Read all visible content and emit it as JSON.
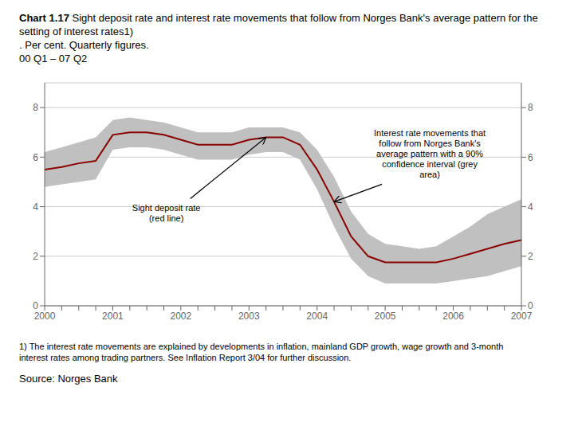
{
  "chart_data": {
    "type": "line",
    "title": "Chart 1.17",
    "subtitle": "Sight deposit rate and interest rate movements that follow from Norges Bank's average pattern for the setting of interest rates1)\n. Per cent. Quarterly figures.\n00 Q1 – 07 Q2",
    "footnote": "1) The interest rate movements are explained by developments in inflation, mainland GDP growth, wage growth and 3-month interest rates among trading partners. See Inflation Report 3/04 for further discussion.",
    "source": "Source: Norges Bank",
    "annotations": [
      "Sight deposit rate\n(red line)",
      "Interest rate movements that\nfollow from Norges Bank's\naverage pattern with a 90%\nconfidence interval (grey\narea)"
    ],
    "categories": [
      "2000",
      null,
      null,
      null,
      "2001",
      null,
      null,
      null,
      "2002",
      null,
      null,
      null,
      "2003",
      null,
      null,
      null,
      "2004",
      null,
      null,
      null,
      "2005",
      null,
      null,
      null,
      "2006",
      null,
      null,
      null,
      "2007"
    ],
    "series": [
      {
        "type": "area",
        "color": "#C0C0C0",
        "lower": [
          4.8,
          4.9,
          5.0,
          5.1,
          6.3,
          6.4,
          6.4,
          6.3,
          6.1,
          5.9,
          5.9,
          5.9,
          6.1,
          6.2,
          6.2,
          5.9,
          4.7,
          3.2,
          1.9,
          1.2,
          0.9,
          0.9,
          0.9,
          0.9,
          1.0,
          1.1,
          1.2,
          1.4,
          1.6
        ],
        "upper": [
          6.2,
          6.4,
          6.6,
          6.8,
          7.5,
          7.6,
          7.5,
          7.4,
          7.2,
          7.0,
          7.0,
          7.0,
          7.2,
          7.2,
          7.2,
          7.0,
          6.3,
          5.2,
          3.8,
          2.9,
          2.5,
          2.4,
          2.3,
          2.4,
          2.8,
          3.2,
          3.7,
          4.0,
          4.3
        ]
      },
      {
        "type": "line",
        "color": "#8B0000",
        "values": [
          5.5,
          5.6,
          5.75,
          5.85,
          6.9,
          7.0,
          7.0,
          6.9,
          6.7,
          6.5,
          6.5,
          6.5,
          6.7,
          6.8,
          6.8,
          6.5,
          5.5,
          4.2,
          2.8,
          2.0,
          1.75,
          1.75,
          1.75,
          1.75,
          1.9,
          2.1,
          2.3,
          2.5,
          2.65
        ]
      }
    ],
    "ylim": [
      0,
      9
    ],
    "yticks": [
      0,
      2,
      4,
      6,
      8
    ],
    "grid": true
  }
}
